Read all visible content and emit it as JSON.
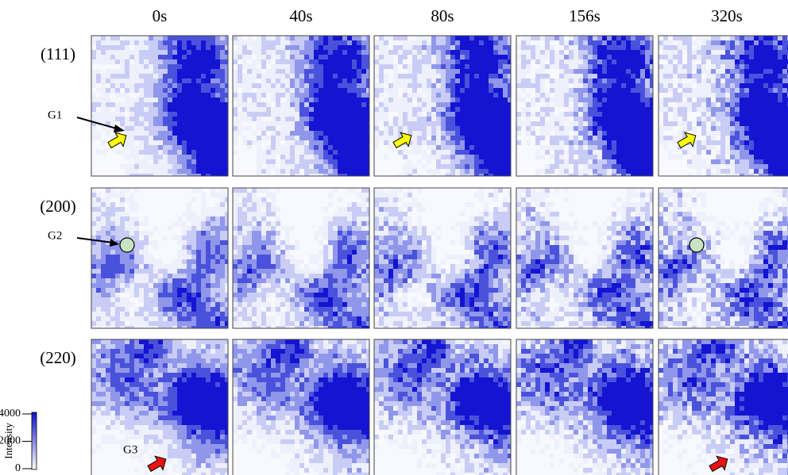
{
  "columns": [
    "0s",
    "40s",
    "80s",
    "156s",
    "320s"
  ],
  "rows": [
    "(111)",
    "(200)",
    "(220)"
  ],
  "annotations": [
    "G1",
    "G2",
    "G3"
  ],
  "colorbar": {
    "label": "Intensity",
    "lim": [
      0,
      4000
    ],
    "ticks": [
      0,
      2000,
      4000
    ]
  }
}
